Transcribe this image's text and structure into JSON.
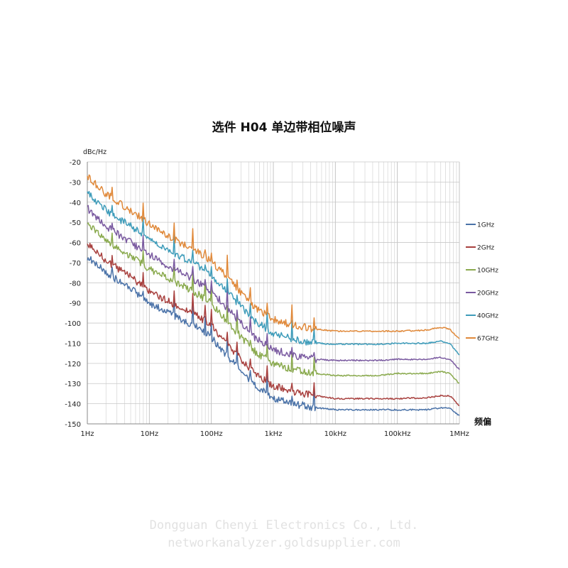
{
  "chart_data": {
    "type": "line",
    "title": "选件 H04 单边带相位噪声",
    "ylabel": "dBc/Hz",
    "xlabel": "频偏",
    "x_scale": "log",
    "xlim": [
      1,
      1000000
    ],
    "ylim": [
      -150,
      -20
    ],
    "grid": true,
    "legend_position": "right",
    "x_ticks": [
      {
        "value": 1,
        "label": "1Hz"
      },
      {
        "value": 10,
        "label": "10Hz"
      },
      {
        "value": 100,
        "label": "100Hz"
      },
      {
        "value": 1000,
        "label": "1kHz"
      },
      {
        "value": 10000,
        "label": "10kHz"
      },
      {
        "value": 100000,
        "label": "100kHz"
      },
      {
        "value": 1000000,
        "label": "1MHz"
      }
    ],
    "y_ticks": [
      "-20",
      "-30",
      "-40",
      "-50",
      "-60",
      "-70",
      "-80",
      "-90",
      "-100",
      "-110",
      "-120",
      "-130",
      "-140",
      "-150"
    ],
    "x": [
      1,
      2,
      5,
      10,
      20,
      50,
      100,
      200,
      500,
      1000,
      2000,
      5000,
      10000,
      50000,
      100000,
      300000,
      500000,
      700000,
      1000000
    ],
    "series": [
      {
        "name": "1GHz",
        "color": "#4a72a8",
        "values": [
          -67,
          -75,
          -83,
          -90,
          -95,
          -101,
          -107,
          -118,
          -131,
          -137,
          -140,
          -142,
          -143,
          -143,
          -143,
          -143,
          -142,
          -142,
          -146
        ]
      },
      {
        "name": "2GHz",
        "color": "#a8403e",
        "values": [
          -60,
          -69,
          -77,
          -84,
          -89,
          -95,
          -101,
          -112,
          -125,
          -131,
          -134,
          -136,
          -137.5,
          -137.5,
          -137.5,
          -137,
          -136,
          -136,
          -141
        ]
      },
      {
        "name": "10GHz",
        "color": "#8aaa4e",
        "values": [
          -50,
          -59,
          -67,
          -73,
          -78,
          -84,
          -90,
          -101,
          -114,
          -120,
          -123,
          -125,
          -126,
          -126,
          -125,
          -125,
          -124,
          -125,
          -130
        ]
      },
      {
        "name": "20GHz",
        "color": "#7a5aa0",
        "values": [
          -43,
          -52,
          -60,
          -66,
          -72,
          -78,
          -84,
          -94,
          -107,
          -113,
          -116,
          -118,
          -118.5,
          -118.5,
          -118,
          -118,
          -117,
          -118,
          -123
        ]
      },
      {
        "name": "40GHz",
        "color": "#3e9cba",
        "values": [
          -35,
          -44,
          -52,
          -58,
          -64,
          -70,
          -76,
          -86,
          -99,
          -105,
          -108,
          -110,
          -110.5,
          -110.5,
          -110,
          -110,
          -109,
          -110,
          -116
        ]
      },
      {
        "name": "67GHz",
        "color": "#e0893a",
        "values": [
          -27,
          -36,
          -44,
          -51,
          -57,
          -63,
          -69,
          -79,
          -92,
          -98,
          -101,
          -103,
          -104,
          -104,
          -104,
          -103.5,
          -102,
          -103,
          -108
        ]
      }
    ]
  },
  "watermark": {
    "line1": "Dongguan Chenyi Electronics Co., Ltd.",
    "line2": "networkanalyzer.goldsupplier.com"
  }
}
